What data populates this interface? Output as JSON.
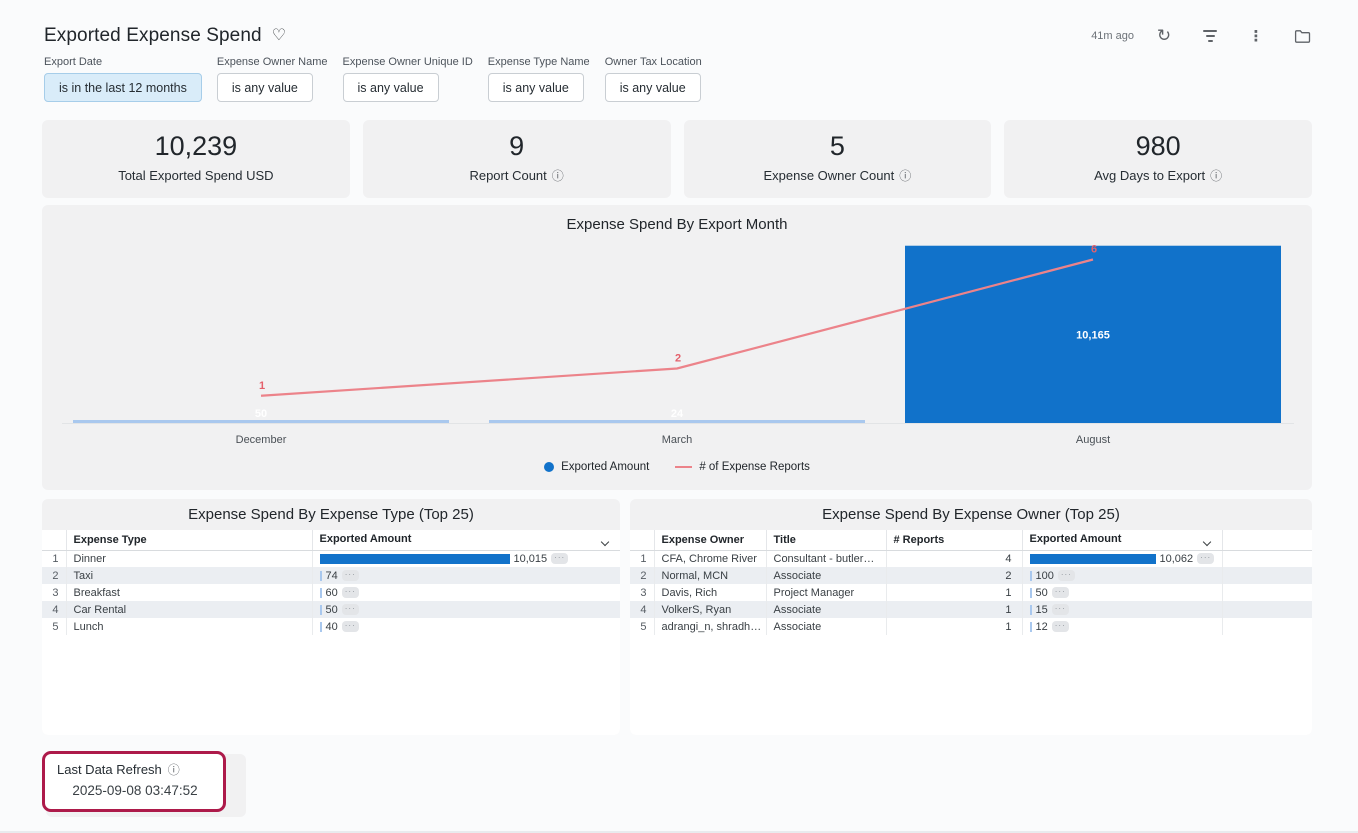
{
  "header": {
    "title": "Exported Expense Spend",
    "last_run": "41m ago"
  },
  "icons": {
    "heart": "♡",
    "refresh": "↻",
    "kebab": "⋮",
    "info": "ⓘ",
    "cell_more": "···"
  },
  "filters": [
    {
      "label": "Export Date",
      "value": "is in the last 12 months",
      "active": true
    },
    {
      "label": "Expense Owner Name",
      "value": "is any value",
      "active": false
    },
    {
      "label": "Expense Owner Unique ID",
      "value": "is any value",
      "active": false
    },
    {
      "label": "Expense Type Name",
      "value": "is any value",
      "active": false
    },
    {
      "label": "Owner Tax Location",
      "value": "is any value",
      "active": false
    }
  ],
  "kpis": [
    {
      "value": "10,239",
      "label": "Total Exported Spend USD",
      "info": false
    },
    {
      "value": "9",
      "label": "Report Count",
      "info": true
    },
    {
      "value": "5",
      "label": "Expense Owner Count",
      "info": true
    },
    {
      "value": "980",
      "label": "Avg Days to Export",
      "info": true
    }
  ],
  "chart_data": {
    "type": "bar",
    "subtype": "combo-bar-line",
    "title": "Expense Spend By Export Month",
    "categories": [
      "December",
      "March",
      "August"
    ],
    "series": [
      {
        "name": "Exported Amount",
        "type": "bar",
        "color": "#1172ca",
        "color_small": "#a9c8ee",
        "values": [
          50,
          24,
          10165
        ],
        "value_labels": [
          "50",
          "24",
          "10,165"
        ],
        "axis_max": 12500
      },
      {
        "name": "# of Expense Reports",
        "type": "line",
        "color": "#ec838a",
        "label_color": "#e4606b",
        "values": [
          1,
          2,
          6
        ],
        "value_labels": [
          "1",
          "2",
          "6"
        ],
        "axis_max": 8
      }
    ],
    "xlabel": "",
    "ylabel": "",
    "grid": false,
    "legend_position": "bottom"
  },
  "tables": {
    "expense_type": {
      "title": "Expense Spend By Expense Type (Top 25)",
      "columns": [
        "Expense Type",
        "Exported Amount"
      ],
      "rows": [
        {
          "rank": "1",
          "type": "Dinner",
          "amount": "10,015",
          "amount_value": 10015
        },
        {
          "rank": "2",
          "type": "Taxi",
          "amount": "74",
          "amount_value": 74
        },
        {
          "rank": "3",
          "type": "Breakfast",
          "amount": "60",
          "amount_value": 60
        },
        {
          "rank": "4",
          "type": "Car Rental",
          "amount": "50",
          "amount_value": 50
        },
        {
          "rank": "5",
          "type": "Lunch",
          "amount": "40",
          "amount_value": 40
        }
      ]
    },
    "expense_owner": {
      "title": "Expense Spend By Expense Owner (Top 25)",
      "columns": [
        "Expense Owner",
        "Title",
        "# Reports",
        "Exported Amount"
      ],
      "rows": [
        {
          "rank": "1",
          "owner": "CFA, Chrome River",
          "title": "Consultant - butler@i...",
          "reports": "4",
          "amount": "10,062",
          "amount_value": 10062
        },
        {
          "rank": "2",
          "owner": "Normal, MCN",
          "title": "Associate",
          "reports": "2",
          "amount": "100",
          "amount_value": 100
        },
        {
          "rank": "3",
          "owner": "Davis, Rich",
          "title": "Project Manager",
          "reports": "1",
          "amount": "50",
          "amount_value": 50
        },
        {
          "rank": "4",
          "owner": "VolkerS, Ryan",
          "title": "Associate",
          "reports": "1",
          "amount": "15",
          "amount_value": 15
        },
        {
          "rank": "5",
          "owner": "adrangi_n, shradha_n",
          "title": "Associate",
          "reports": "1",
          "amount": "12",
          "amount_value": 12
        }
      ]
    }
  },
  "footer": {
    "label": "Last Data Refresh",
    "value": "2025-09-08 03:47:52"
  },
  "colors": {
    "bar_blue": "#1172ca",
    "bar_light_blue": "#a9c8ee",
    "line_red": "#ec838a",
    "chip_active_bg": "#d9ecf9",
    "chip_active_border": "#a6cde9",
    "highlight_border": "#ad1a4a",
    "card_bg": "#f1f1f2"
  }
}
